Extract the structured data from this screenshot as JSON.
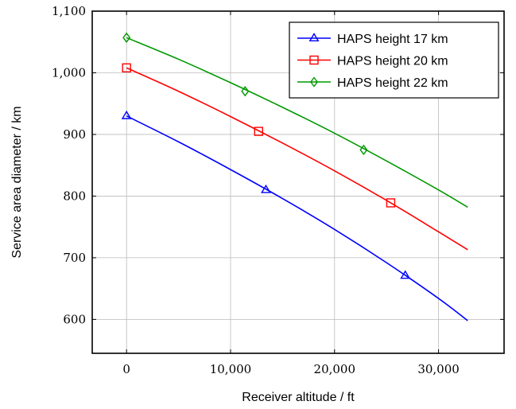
{
  "chart_data": {
    "type": "line",
    "xlabel": "Receiver altitude / ft",
    "ylabel": "Service area diameter / km",
    "xlim": [
      -3300,
      36300
    ],
    "ylim": [
      545,
      1100
    ],
    "xticks": [
      0,
      10000,
      20000,
      30000
    ],
    "xtick_labels": [
      "0",
      "10,000",
      "20,000",
      "30,000"
    ],
    "yticks": [
      600,
      700,
      800,
      900,
      1000,
      1100
    ],
    "ytick_labels": [
      "600",
      "700",
      "800",
      "900",
      "1,000",
      "1,100"
    ],
    "grid": true,
    "legend_position": "top-right",
    "series": [
      {
        "name": "HAPS height 17 km",
        "color": "#0000ff",
        "marker": "triangle",
        "x": [
          0,
          5000,
          10000,
          15000,
          20000,
          25000,
          30000,
          32800
        ],
        "y": [
          930,
          888,
          843,
          796,
          746,
          692,
          634,
          598
        ],
        "marker_x": [
          0,
          13400,
          26800
        ],
        "marker_y": [
          930,
          810,
          671
        ]
      },
      {
        "name": "HAPS height 20 km",
        "color": "#ff0000",
        "marker": "square",
        "x": [
          0,
          5000,
          10000,
          15000,
          20000,
          25000,
          30000,
          32800
        ],
        "y": [
          1008,
          970,
          929,
          886,
          841,
          793,
          742,
          713
        ],
        "marker_x": [
          0,
          12700,
          25400
        ],
        "marker_y": [
          1008,
          905,
          789
        ]
      },
      {
        "name": "HAPS height 22 km",
        "color": "#009900",
        "marker": "diamond",
        "x": [
          0,
          5000,
          10000,
          15000,
          20000,
          25000,
          30000,
          32800
        ],
        "y": [
          1057,
          1022,
          984,
          944,
          902,
          857,
          810,
          782
        ],
        "marker_x": [
          0,
          11400,
          22800
        ],
        "marker_y": [
          1057,
          970,
          875
        ]
      }
    ]
  }
}
